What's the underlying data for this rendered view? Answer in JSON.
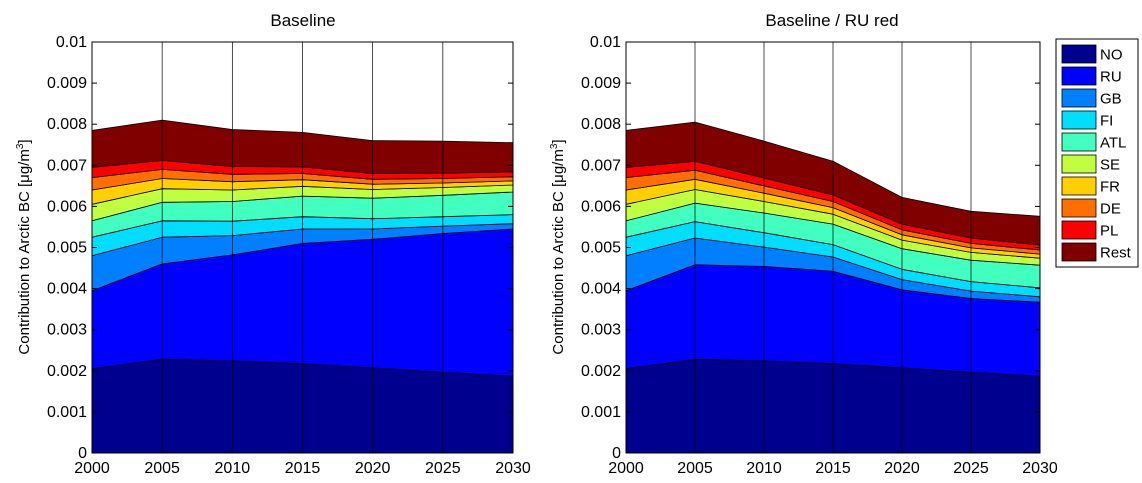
{
  "figure": {
    "ylabel_main": "Contribution to Arctic BC [",
    "ylabel_unit": "μg/m",
    "ylabel_sup": "3",
    "ylabel_close": "]"
  },
  "legend": {
    "position": "right"
  },
  "chart_data": [
    {
      "type": "area",
      "stacked": true,
      "title": "Baseline",
      "x": [
        2000,
        2005,
        2010,
        2015,
        2020,
        2025,
        2030
      ],
      "xlim": [
        2000,
        2030
      ],
      "ylim": [
        0,
        0.01
      ],
      "xticks": [
        "2000",
        "2005",
        "2010",
        "2015",
        "2020",
        "2025",
        "2030"
      ],
      "yticks": [
        "0",
        "0.001",
        "0.002",
        "0.003",
        "0.004",
        "0.005",
        "0.006",
        "0.007",
        "0.008",
        "0.009",
        "0.01"
      ],
      "xlabel": "",
      "ylabel": "Contribution to Arctic BC [μg/m3]",
      "grid": "vertical",
      "series": [
        {
          "name": "NO",
          "color": "#00008f",
          "values": [
            0.00205,
            0.00228,
            0.00224,
            0.00217,
            0.00207,
            0.00196,
            0.00187
          ]
        },
        {
          "name": "RU",
          "color": "#0000ff",
          "values": [
            0.0019,
            0.00232,
            0.00258,
            0.00293,
            0.00313,
            0.00338,
            0.00358
          ]
        },
        {
          "name": "GB",
          "color": "#0080ff",
          "values": [
            0.00085,
            0.00065,
            0.00047,
            0.00035,
            0.00025,
            0.00018,
            0.00013
          ]
        },
        {
          "name": "FI",
          "color": "#00ddff",
          "values": [
            0.00045,
            0.0004,
            0.00035,
            0.0003,
            0.00025,
            0.00023,
            0.00022
          ]
        },
        {
          "name": "ATL",
          "color": "#40ffbf",
          "values": [
            0.0004,
            0.00045,
            0.00048,
            0.0005,
            0.0005,
            0.00052,
            0.00055
          ]
        },
        {
          "name": "SE",
          "color": "#bfff40",
          "values": [
            0.0004,
            0.00033,
            0.00028,
            0.00024,
            0.00021,
            0.00019,
            0.00017
          ]
        },
        {
          "name": "FR",
          "color": "#ffcf00",
          "values": [
            0.00035,
            0.00025,
            0.0002,
            0.00016,
            0.00013,
            0.00011,
            0.0001
          ]
        },
        {
          "name": "DE",
          "color": "#ff6f00",
          "values": [
            0.0003,
            0.00022,
            0.00018,
            0.00015,
            0.00012,
            0.00011,
            0.0001
          ]
        },
        {
          "name": "PL",
          "color": "#ff0000",
          "values": [
            0.00025,
            0.00022,
            0.00019,
            0.00016,
            0.00014,
            0.00013,
            0.00012
          ]
        },
        {
          "name": "Rest",
          "color": "#800000",
          "values": [
            0.0009,
            0.00098,
            0.0009,
            0.00084,
            0.0008,
            0.00078,
            0.00071
          ]
        }
      ]
    },
    {
      "type": "area",
      "stacked": true,
      "title": "Baseline / RU red",
      "x": [
        2000,
        2005,
        2010,
        2015,
        2020,
        2025,
        2030
      ],
      "xlim": [
        2000,
        2030
      ],
      "ylim": [
        0,
        0.01
      ],
      "xticks": [
        "2000",
        "2005",
        "2010",
        "2015",
        "2020",
        "2025",
        "2030"
      ],
      "yticks": [
        "0",
        "0.001",
        "0.002",
        "0.003",
        "0.004",
        "0.005",
        "0.006",
        "0.007",
        "0.008",
        "0.009",
        "0.01"
      ],
      "xlabel": "",
      "ylabel": "Contribution to Arctic BC [μg/m3]",
      "grid": "vertical",
      "series": [
        {
          "name": "NO",
          "color": "#00008f",
          "values": [
            0.00205,
            0.00228,
            0.00224,
            0.00217,
            0.00207,
            0.00196,
            0.00187
          ]
        },
        {
          "name": "RU",
          "color": "#0000ff",
          "values": [
            0.0019,
            0.0023,
            0.0023,
            0.00225,
            0.0019,
            0.0018,
            0.0018
          ]
        },
        {
          "name": "GB",
          "color": "#0080ff",
          "values": [
            0.00085,
            0.00065,
            0.00047,
            0.00035,
            0.00025,
            0.00018,
            0.00013
          ]
        },
        {
          "name": "FI",
          "color": "#00ddff",
          "values": [
            0.00045,
            0.0004,
            0.00035,
            0.0003,
            0.00025,
            0.00023,
            0.00022
          ]
        },
        {
          "name": "ATL",
          "color": "#40ffbf",
          "values": [
            0.0004,
            0.00045,
            0.00048,
            0.0005,
            0.0005,
            0.00052,
            0.00055
          ]
        },
        {
          "name": "SE",
          "color": "#bfff40",
          "values": [
            0.0004,
            0.00033,
            0.00028,
            0.00024,
            0.00021,
            0.00019,
            0.00017
          ]
        },
        {
          "name": "FR",
          "color": "#ffcf00",
          "values": [
            0.00035,
            0.00025,
            0.0002,
            0.00016,
            0.00013,
            0.00011,
            0.0001
          ]
        },
        {
          "name": "DE",
          "color": "#ff6f00",
          "values": [
            0.0003,
            0.00022,
            0.00018,
            0.00015,
            0.00012,
            0.00011,
            0.0001
          ]
        },
        {
          "name": "PL",
          "color": "#ff0000",
          "values": [
            0.00025,
            0.00022,
            0.00019,
            0.00016,
            0.00014,
            0.00013,
            0.00012
          ]
        },
        {
          "name": "Rest",
          "color": "#800000",
          "values": [
            0.0009,
            0.00095,
            0.0009,
            0.00082,
            0.00065,
            0.00065,
            0.0007
          ]
        }
      ]
    }
  ]
}
